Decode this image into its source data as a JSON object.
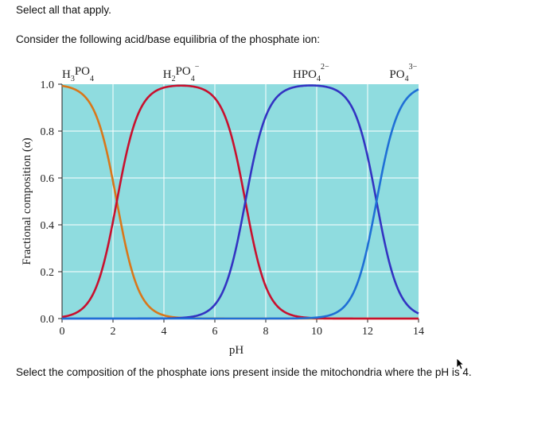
{
  "instruction": "Select all that apply.",
  "prompt": "Consider the following acid/base equilibria of the phosphate ion:",
  "question": "Select the composition of the phosphate ions present inside the mitochondria where the pH is 4.",
  "chart_data": {
    "type": "line",
    "xlabel": "pH",
    "ylabel": "Fractional composition (α)",
    "xlim": [
      0,
      14
    ],
    "ylim": [
      0,
      1
    ],
    "x_ticks": [
      "0",
      "2",
      "4",
      "6",
      "8",
      "10",
      "12",
      "14"
    ],
    "y_ticks": [
      "0.0",
      "0.2",
      "0.4",
      "0.6",
      "0.8",
      "1.0"
    ],
    "grid": true,
    "pKa": [
      2.15,
      7.2,
      12.35
    ],
    "species": [
      {
        "base": "H",
        "sub1": "3",
        "mid": "PO",
        "sub2": "4",
        "sup": "",
        "color": "#d9771a"
      },
      {
        "base": "H",
        "sub1": "2",
        "mid": "PO",
        "sub2": "4",
        "sup": "−",
        "color": "#c8102e"
      },
      {
        "base": "HPO",
        "sub1": "4",
        "mid": "",
        "sub2": "",
        "sup": "2−",
        "color": "#3333c2"
      },
      {
        "base": "PO",
        "sub1": "4",
        "mid": "",
        "sub2": "",
        "sup": "3−",
        "color": "#1f6fd6"
      }
    ],
    "plot_background": "#8fdcdf",
    "grid_color": "#ffffff"
  }
}
